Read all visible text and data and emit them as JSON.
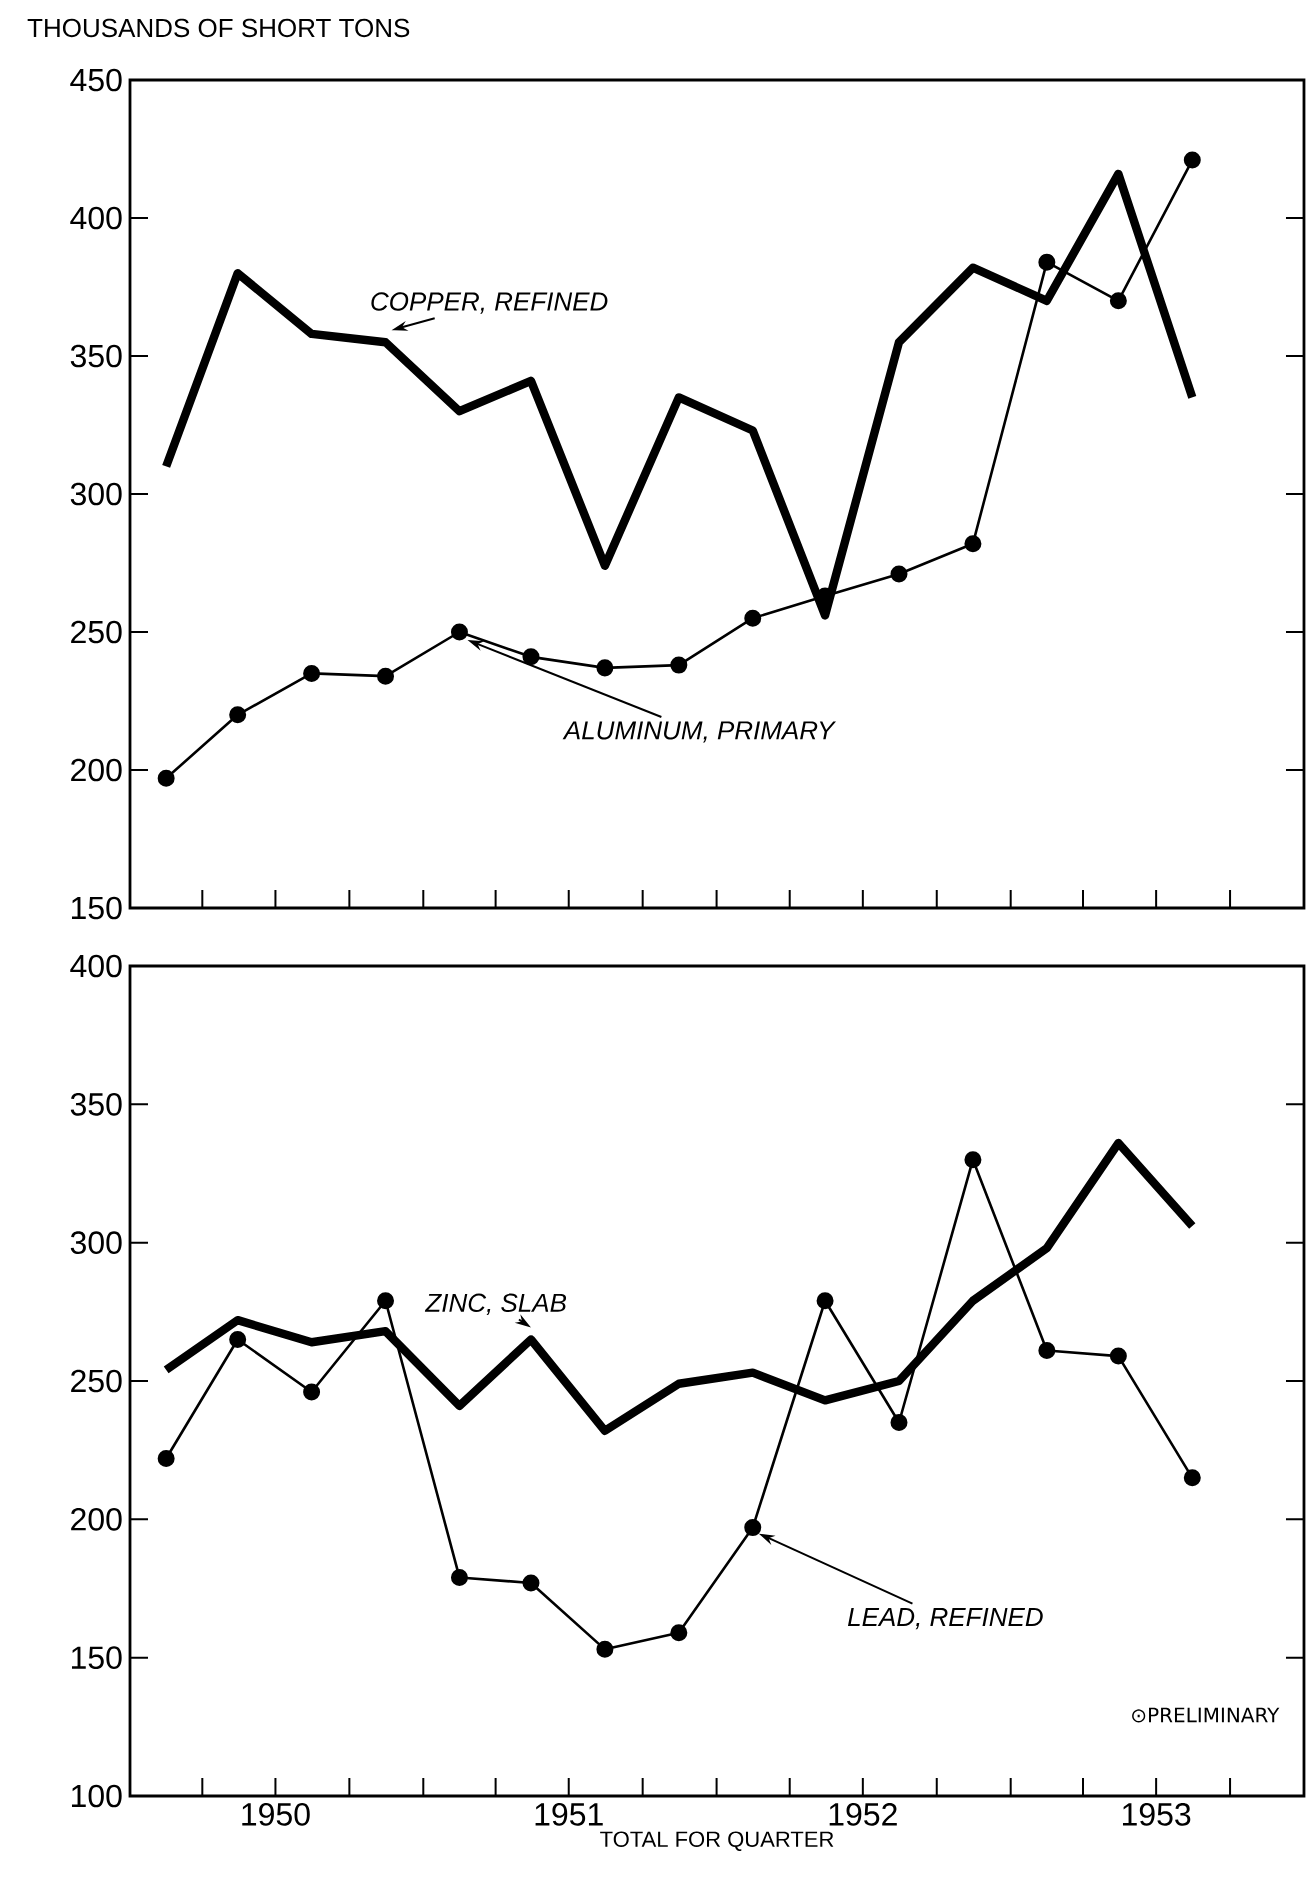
{
  "chart_data": [
    {
      "type": "line",
      "ylabel": "THOUSANDS OF SHORT TONS",
      "x": [
        "1950-02-15",
        "1950-05-15",
        "1950-08-15",
        "1950-11-15",
        "1951-02-15",
        "1951-05-15",
        "1951-08-15",
        "1951-11-15",
        "1952-02-15",
        "1952-05-15",
        "1952-08-15",
        "1952-11-15",
        "1953-02-15",
        "1953-05-15",
        "1953-08-15"
      ],
      "xlim": [
        "1950-01-01",
        "1954-01-01"
      ],
      "ylim": [
        150,
        450
      ],
      "yticks": [
        150,
        200,
        250,
        300,
        350,
        400,
        450
      ],
      "xticks": [
        {
          "value": "1950-04-01",
          "label": null
        },
        {
          "value": "1950-07-01",
          "label": null
        },
        {
          "value": "1950-10-01",
          "label": null
        },
        {
          "value": "1951-01-01",
          "label": null
        },
        {
          "value": "1951-04-01",
          "label": null
        },
        {
          "value": "1951-07-01",
          "label": null
        },
        {
          "value": "1951-10-01",
          "label": null
        },
        {
          "value": "1952-01-01",
          "label": null
        },
        {
          "value": "1952-04-01",
          "label": null
        },
        {
          "value": "1952-07-01",
          "label": null
        },
        {
          "value": "1952-10-01",
          "label": null
        },
        {
          "value": "1953-01-01",
          "label": null
        },
        {
          "value": "1953-04-01",
          "label": null
        },
        {
          "value": "1953-07-01",
          "label": null
        },
        {
          "value": "1953-10-01",
          "label": null
        }
      ],
      "tick_labels": "y",
      "grid": false,
      "legend": false,
      "series": [
        {
          "name": "COPPER, REFINED",
          "color": "#000000",
          "marker": "none",
          "values": [
            310,
            380,
            358,
            355,
            330,
            341,
            274,
            335,
            323,
            256,
            355,
            382,
            370,
            416,
            335
          ]
        },
        {
          "name": "ALUMINUM, PRIMARY",
          "color": "#000000",
          "marker": "circle",
          "values": [
            197,
            220,
            235,
            234,
            250,
            241,
            237,
            238,
            255,
            263,
            271,
            282,
            384,
            370,
            421
          ]
        }
      ]
    },
    {
      "type": "line",
      "xlabel": "TOTAL FOR QUARTER",
      "x": [
        "1950-02-15",
        "1950-05-15",
        "1950-08-15",
        "1950-11-15",
        "1951-02-15",
        "1951-05-15",
        "1951-08-15",
        "1951-11-15",
        "1952-02-15",
        "1952-05-15",
        "1952-08-15",
        "1952-11-15",
        "1953-02-15",
        "1953-05-15",
        "1953-08-15"
      ],
      "xlim": [
        "1950-01-01",
        "1954-01-01"
      ],
      "ylim": [
        100,
        400
      ],
      "yticks": [
        100,
        150,
        200,
        250,
        300,
        350,
        400
      ],
      "xticks": [
        {
          "value": "1950-04-01",
          "label": null
        },
        {
          "value": "1950-07-01",
          "label": "1950"
        },
        {
          "value": "1950-10-01",
          "label": null
        },
        {
          "value": "1951-01-01",
          "label": null
        },
        {
          "value": "1951-04-01",
          "label": null
        },
        {
          "value": "1951-07-01",
          "label": "1951"
        },
        {
          "value": "1951-10-01",
          "label": null
        },
        {
          "value": "1952-01-01",
          "label": null
        },
        {
          "value": "1952-04-01",
          "label": null
        },
        {
          "value": "1952-07-01",
          "label": "1952"
        },
        {
          "value": "1952-10-01",
          "label": null
        },
        {
          "value": "1953-01-01",
          "label": null
        },
        {
          "value": "1953-04-01",
          "label": null
        },
        {
          "value": "1953-07-01",
          "label": "1953"
        },
        {
          "value": "1953-10-01",
          "label": null
        }
      ],
      "grid": false,
      "legend": false,
      "annotations": [
        "⊙PRELIMINARY"
      ],
      "series": [
        {
          "name": "ZINC, SLAB",
          "color": "#000000",
          "marker": "none",
          "values": [
            254,
            272,
            264,
            268,
            241,
            265,
            232,
            249,
            253,
            243,
            250,
            279,
            298,
            336,
            306
          ]
        },
        {
          "name": "LEAD, REFINED",
          "color": "#000000",
          "marker": "circle",
          "values": [
            222,
            265,
            246,
            279,
            179,
            177,
            153,
            159,
            197,
            279,
            235,
            330,
            261,
            259,
            215
          ]
        }
      ]
    }
  ]
}
